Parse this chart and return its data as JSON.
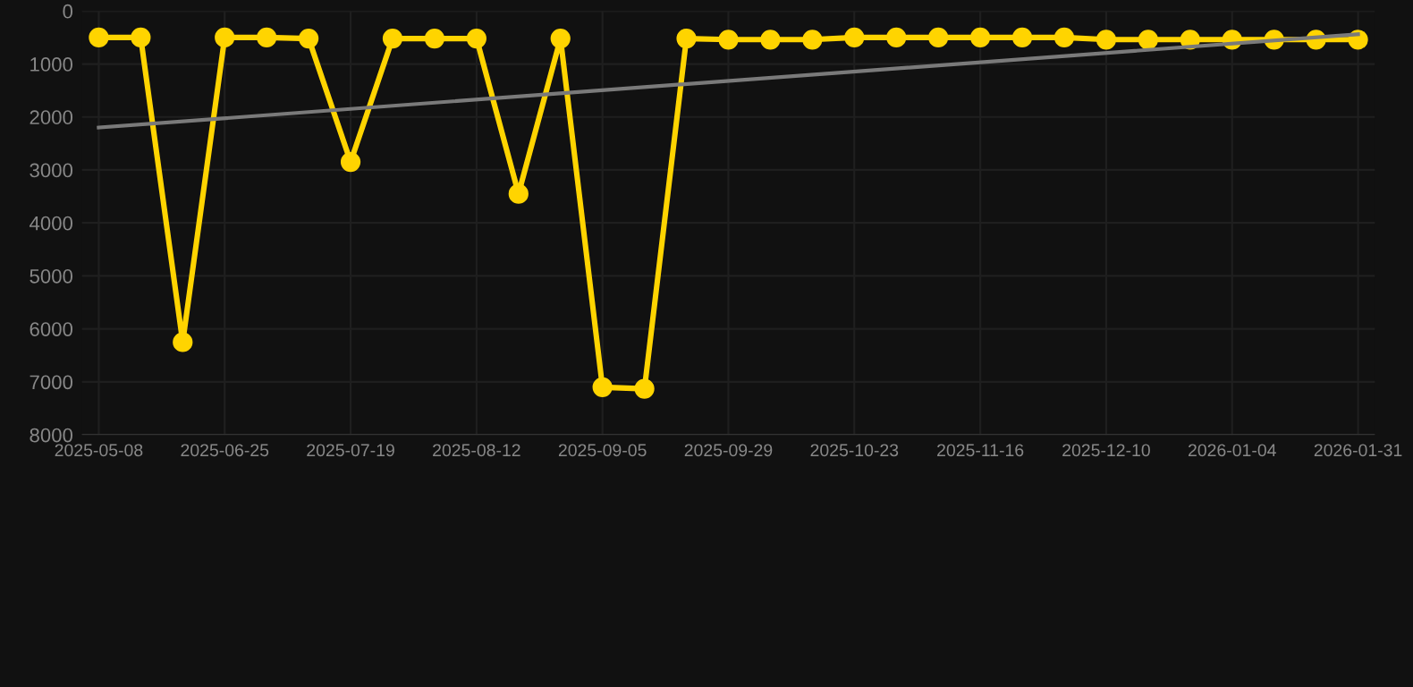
{
  "chart_data": {
    "type": "line",
    "categories": [
      "2025-05-08",
      null,
      null,
      "2025-06-25",
      null,
      null,
      "2025-07-19",
      null,
      null,
      "2025-08-12",
      null,
      null,
      "2025-09-05",
      null,
      null,
      "2025-09-29",
      null,
      null,
      "2025-10-23",
      null,
      null,
      "2025-11-16",
      null,
      null,
      "2025-12-10",
      null,
      null,
      "2026-01-04",
      null,
      null,
      "2026-01-31"
    ],
    "series": [
      {
        "color": "#ffd400",
        "marker": "circle",
        "values": [
          500,
          500,
          6250,
          500,
          500,
          520,
          2850,
          520,
          520,
          520,
          3450,
          520,
          7100,
          7130,
          520,
          540,
          540,
          540,
          500,
          500,
          500,
          500,
          500,
          500,
          540,
          540,
          540,
          540,
          540,
          540,
          540
        ]
      },
      {
        "color": "#7a7a7a",
        "marker": "none",
        "values": [
          2200,
          null,
          null,
          null,
          null,
          null,
          null,
          null,
          null,
          null,
          null,
          null,
          null,
          null,
          null,
          null,
          null,
          null,
          null,
          null,
          null,
          null,
          null,
          null,
          null,
          null,
          null,
          null,
          null,
          null,
          440
        ]
      }
    ],
    "ylim": [
      8000,
      0
    ],
    "yticks": [
      0,
      1000,
      2000,
      3000,
      4000,
      5000,
      6000,
      7000,
      8000
    ],
    "grid": true
  }
}
